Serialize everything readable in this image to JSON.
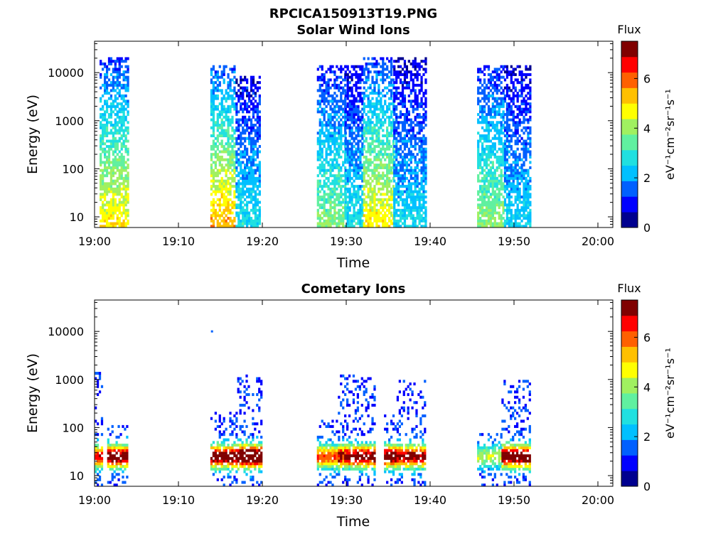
{
  "figure": {
    "title": "RPCICA150913T19.PNG"
  },
  "colormap": [
    "#00008f",
    "#0000ff",
    "#0060ff",
    "#00c0ff",
    "#20e0e0",
    "#60f0a0",
    "#a0f060",
    "#ffff00",
    "#ffc000",
    "#ff6000",
    "#ff0000",
    "#800000"
  ],
  "chart_data": [
    {
      "type": "heatmap",
      "title": "Solar Wind Ions",
      "xlabel": "Time",
      "ylabel": "Energy (eV)",
      "x_ticks": [
        "19:00",
        "19:10",
        "19:20",
        "19:30",
        "19:40",
        "19:50",
        "20:00"
      ],
      "y_ticks": [
        "10",
        "100",
        "1000",
        "10000"
      ],
      "y_scale": "log",
      "xlim_minutes": [
        0,
        60
      ],
      "ylim_ev": [
        6,
        45000
      ],
      "colorbar": {
        "label": "Flux",
        "units": "eV⁻¹cm⁻²sr⁻¹s⁻¹",
        "ticks": [
          "0",
          "2",
          "4",
          "6"
        ],
        "range": [
          0,
          7.5
        ]
      },
      "bursts": [
        {
          "t_start_min": 0.6,
          "t_end_min": 4.0,
          "e_top_ev": 20000,
          "peak_flux": 5.0
        },
        {
          "t_start_min": 13.8,
          "t_end_min": 16.8,
          "e_top_ev": 14000,
          "peak_flux": 5.5
        },
        {
          "t_start_min": 16.8,
          "t_end_min": 19.8,
          "e_top_ev": 9000,
          "peak_flux": 2.8
        },
        {
          "t_start_min": 26.5,
          "t_end_min": 29.8,
          "e_top_ev": 15000,
          "peak_flux": 3.8
        },
        {
          "t_start_min": 29.8,
          "t_end_min": 32.0,
          "e_top_ev": 15000,
          "peak_flux": 2.8
        },
        {
          "t_start_min": 32.0,
          "t_end_min": 35.6,
          "e_top_ev": 22000,
          "peak_flux": 5.0
        },
        {
          "t_start_min": 35.6,
          "t_end_min": 39.5,
          "e_top_ev": 20000,
          "peak_flux": 2.6
        },
        {
          "t_start_min": 45.6,
          "t_end_min": 48.8,
          "e_top_ev": 15000,
          "peak_flux": 4.0
        },
        {
          "t_start_min": 48.8,
          "t_end_min": 52.0,
          "e_top_ev": 14000,
          "peak_flux": 2.6
        }
      ]
    },
    {
      "type": "heatmap",
      "title": "Cometary Ions",
      "xlabel": "Time",
      "ylabel": "Energy (eV)",
      "x_ticks": [
        "19:00",
        "19:10",
        "19:20",
        "19:30",
        "19:40",
        "19:50",
        "20:00"
      ],
      "y_ticks": [
        "10",
        "100",
        "1000",
        "10000"
      ],
      "y_scale": "log",
      "xlim_minutes": [
        0,
        60
      ],
      "ylim_ev": [
        6,
        45000
      ],
      "colorbar": {
        "label": "Flux",
        "units": "eV⁻¹cm⁻²sr⁻¹s⁻¹",
        "ticks": [
          "0",
          "2",
          "4",
          "6"
        ],
        "range": [
          0,
          7.5
        ]
      },
      "bursts": [
        {
          "t_start_min": 0.0,
          "t_end_min": 1.0,
          "e_top_ev": 1500,
          "peak_flux": 5.5
        },
        {
          "t_start_min": 1.5,
          "t_end_min": 4.0,
          "e_top_ev": 120,
          "peak_flux": 6.5
        },
        {
          "t_start_min": 13.8,
          "t_end_min": 17.0,
          "e_top_ev": 200,
          "peak_flux": 6.5
        },
        {
          "t_start_min": 17.0,
          "t_end_min": 20.0,
          "e_top_ev": 1200,
          "peak_flux": 7.3
        },
        {
          "t_start_min": 26.5,
          "t_end_min": 30.5,
          "e_top_ev": 150,
          "peak_flux": 5.0
        },
        {
          "t_start_min": 29.0,
          "t_end_min": 33.5,
          "e_top_ev": 1300,
          "peak_flux": 6.3
        },
        {
          "t_start_min": 34.5,
          "t_end_min": 36.5,
          "e_top_ev": 200,
          "peak_flux": 6.5
        },
        {
          "t_start_min": 36.0,
          "t_end_min": 39.5,
          "e_top_ev": 1000,
          "peak_flux": 6.0
        },
        {
          "t_start_min": 45.6,
          "t_end_min": 48.5,
          "e_top_ev": 80,
          "peak_flux": 3.0
        },
        {
          "t_start_min": 48.5,
          "t_end_min": 52.0,
          "e_top_ev": 1000,
          "peak_flux": 6.8
        }
      ],
      "isolated_points": [
        {
          "t_min": 14.0,
          "energy_ev": 10000,
          "flux": 1.5
        }
      ]
    }
  ]
}
